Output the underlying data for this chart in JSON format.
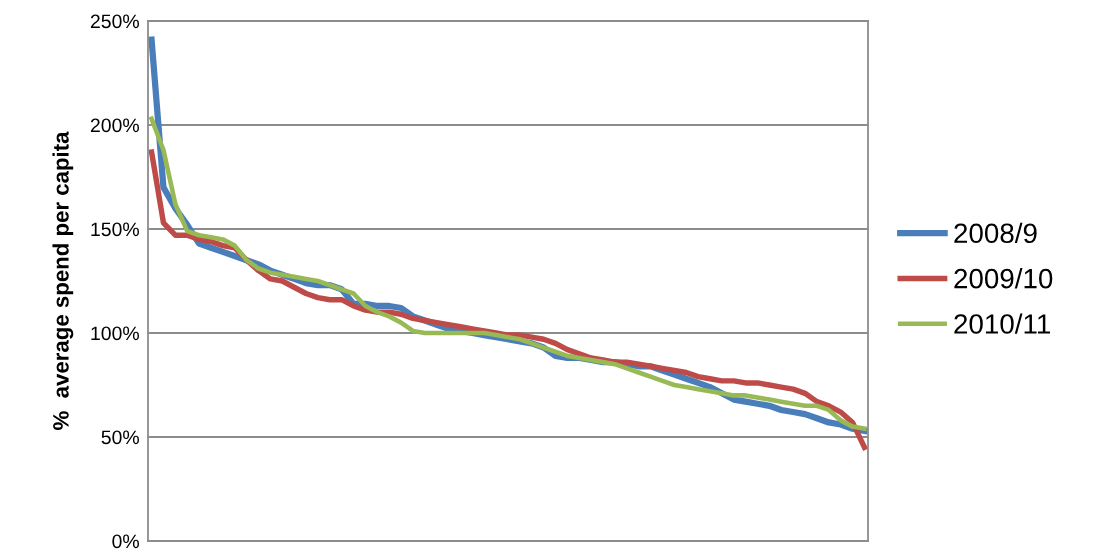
{
  "chart_data": {
    "type": "line",
    "ylabel": "%  average spend per capita",
    "categories": [
      null,
      null,
      null,
      null,
      null,
      null,
      null,
      null,
      null,
      null,
      null,
      null,
      null,
      null,
      null,
      null,
      null,
      null,
      null,
      null,
      null,
      null,
      null,
      null,
      null,
      null,
      null,
      null,
      null,
      null,
      null,
      null,
      null,
      null,
      null,
      null,
      null,
      null,
      null,
      null,
      null,
      null,
      null,
      null,
      null,
      null,
      null,
      null,
      null,
      null,
      null,
      null,
      null,
      null,
      null,
      null,
      null,
      null,
      null,
      null,
      null
    ],
    "series": [
      {
        "name": "2008/9",
        "color": "#4a7ebb",
        "values": [
          241,
          170,
          160,
          152,
          143,
          141,
          139,
          137,
          135,
          133,
          130,
          128,
          126,
          124,
          123,
          123,
          121,
          114,
          114,
          113,
          113,
          112,
          108,
          106,
          104,
          102,
          101,
          100,
          99,
          98,
          97,
          96,
          95,
          93,
          89,
          88,
          88,
          87,
          86,
          86,
          85,
          84,
          84,
          82,
          80,
          78,
          76,
          74,
          71,
          68,
          67,
          66,
          65,
          63,
          62,
          61,
          59,
          57,
          56,
          54,
          53
        ]
      },
      {
        "name": "2009/10",
        "color": "#be4b48",
        "values": [
          187,
          153,
          147,
          147,
          145,
          144,
          142,
          141,
          135,
          130,
          126,
          125,
          122,
          119,
          117,
          116,
          116,
          113,
          111,
          110,
          110,
          109,
          107,
          106,
          105,
          104,
          103,
          102,
          101,
          100,
          99,
          99,
          98,
          97,
          95,
          92,
          90,
          88,
          87,
          86,
          86,
          85,
          84,
          83,
          82,
          81,
          79,
          78,
          77,
          77,
          76,
          76,
          75,
          74,
          73,
          71,
          67,
          65,
          62,
          57,
          45
        ]
      },
      {
        "name": "2010/11",
        "color": "#98b954",
        "values": [
          203,
          188,
          162,
          149,
          147,
          146,
          145,
          142,
          135,
          131,
          129,
          128,
          127,
          126,
          125,
          123,
          121,
          119,
          113,
          110,
          108,
          105,
          101,
          100,
          100,
          100,
          100,
          100,
          100,
          99,
          98,
          97,
          95,
          93,
          91,
          89,
          88,
          87,
          86,
          85,
          83,
          81,
          79,
          77,
          75,
          74,
          73,
          72,
          71,
          70,
          70,
          69,
          68,
          67,
          66,
          65,
          65,
          63,
          58,
          55,
          54
        ]
      }
    ],
    "ylim": [
      0,
      250
    ],
    "yticks": [
      {
        "value": 0,
        "label": "0%"
      },
      {
        "value": 50,
        "label": "50%"
      },
      {
        "value": 100,
        "label": "100%"
      },
      {
        "value": 150,
        "label": "150%"
      },
      {
        "value": 200,
        "label": "200%"
      },
      {
        "value": 250,
        "label": "250%"
      }
    ],
    "grid": "y",
    "legend": "right",
    "marker": "none",
    "line_style": "solid"
  }
}
